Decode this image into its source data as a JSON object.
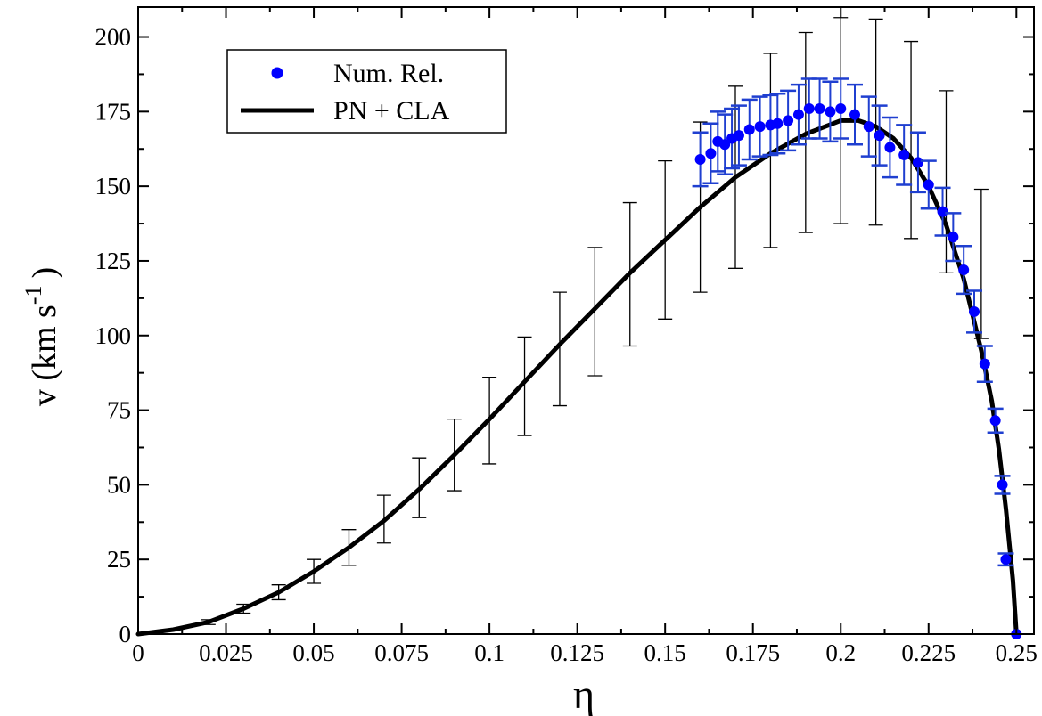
{
  "chart_data": {
    "type": "line",
    "xlabel": "η",
    "ylabel": "v (km s",
    "ylabel_superscript": "-1",
    "ylabel_close": ")",
    "xlim": [
      0,
      0.255
    ],
    "ylim": [
      0,
      210
    ],
    "x_ticks": [
      0,
      0.025,
      0.05,
      0.075,
      0.1,
      0.125,
      0.15,
      0.175,
      0.2,
      0.225,
      0.25
    ],
    "x_tick_labels": [
      "0",
      "0.025",
      "0.05",
      "0.075",
      "0.1",
      "0.125",
      "0.15",
      "0.175",
      "0.2",
      "0.225",
      "0.25"
    ],
    "y_ticks": [
      0,
      25,
      50,
      75,
      100,
      125,
      150,
      175,
      200
    ],
    "y_tick_labels": [
      "0",
      "25",
      "50",
      "75",
      "100",
      "125",
      "150",
      "175",
      "200"
    ],
    "legend": {
      "position": "top-left",
      "entries": [
        {
          "label": "Num. Rel.",
          "marker": "circle",
          "color": "#0000ff"
        },
        {
          "label": "PN + CLA",
          "marker": "line",
          "color": "#000000"
        }
      ]
    },
    "series": [
      {
        "name": "Num. Rel.",
        "kind": "scatter",
        "color": "#0000ff",
        "errorbar_color": "#1f3fd0",
        "points": [
          {
            "x": 0.16,
            "y": 159,
            "err": 9
          },
          {
            "x": 0.163,
            "y": 161,
            "err": 10
          },
          {
            "x": 0.165,
            "y": 165,
            "err": 10
          },
          {
            "x": 0.167,
            "y": 164,
            "err": 10
          },
          {
            "x": 0.169,
            "y": 166,
            "err": 10
          },
          {
            "x": 0.171,
            "y": 167,
            "err": 10
          },
          {
            "x": 0.174,
            "y": 169,
            "err": 10
          },
          {
            "x": 0.177,
            "y": 170,
            "err": 10
          },
          {
            "x": 0.18,
            "y": 170.5,
            "err": 10
          },
          {
            "x": 0.182,
            "y": 171,
            "err": 10
          },
          {
            "x": 0.185,
            "y": 172,
            "err": 10
          },
          {
            "x": 0.188,
            "y": 174,
            "err": 10
          },
          {
            "x": 0.191,
            "y": 176,
            "err": 10
          },
          {
            "x": 0.194,
            "y": 176,
            "err": 10
          },
          {
            "x": 0.197,
            "y": 175,
            "err": 10
          },
          {
            "x": 0.2,
            "y": 176,
            "err": 10
          },
          {
            "x": 0.204,
            "y": 174,
            "err": 10
          },
          {
            "x": 0.208,
            "y": 170,
            "err": 10
          },
          {
            "x": 0.211,
            "y": 167,
            "err": 10
          },
          {
            "x": 0.214,
            "y": 163,
            "err": 10
          },
          {
            "x": 0.218,
            "y": 160.5,
            "err": 10
          },
          {
            "x": 0.222,
            "y": 158,
            "err": 10
          },
          {
            "x": 0.225,
            "y": 150.5,
            "err": 8
          },
          {
            "x": 0.229,
            "y": 141.5,
            "err": 8
          },
          {
            "x": 0.232,
            "y": 133,
            "err": 8
          },
          {
            "x": 0.235,
            "y": 122,
            "err": 8
          },
          {
            "x": 0.238,
            "y": 108,
            "err": 7
          },
          {
            "x": 0.241,
            "y": 90.5,
            "err": 6
          },
          {
            "x": 0.244,
            "y": 71.5,
            "err": 4
          },
          {
            "x": 0.246,
            "y": 50,
            "err": 3
          },
          {
            "x": 0.247,
            "y": 25,
            "err": 2
          },
          {
            "x": 0.25,
            "y": 0,
            "err": 0
          }
        ]
      },
      {
        "name": "PN + CLA",
        "kind": "line",
        "color": "#000000",
        "x": [
          0,
          0.01,
          0.02,
          0.03,
          0.04,
          0.05,
          0.06,
          0.07,
          0.08,
          0.09,
          0.1,
          0.11,
          0.12,
          0.13,
          0.14,
          0.15,
          0.16,
          0.17,
          0.18,
          0.19,
          0.2,
          0.205,
          0.21,
          0.215,
          0.22,
          0.225,
          0.23,
          0.235,
          0.24,
          0.243,
          0.245,
          0.247,
          0.249,
          0.25
        ],
        "y": [
          0,
          1.5,
          4,
          8.5,
          14,
          21,
          29,
          38,
          48.5,
          60,
          72,
          84.5,
          97,
          109,
          121,
          132,
          143,
          153,
          161,
          167.5,
          172,
          172,
          170,
          166,
          159.5,
          150,
          137,
          119,
          95,
          78,
          62,
          42,
          18,
          0
        ]
      },
      {
        "name": "",
        "kind": "errorbars",
        "color": "#000000",
        "points": [
          {
            "x": 0.02,
            "y": 4,
            "err": 0.8
          },
          {
            "x": 0.03,
            "y": 8.5,
            "err": 1.5
          },
          {
            "x": 0.04,
            "y": 14,
            "err": 2.5
          },
          {
            "x": 0.05,
            "y": 21,
            "err": 4
          },
          {
            "x": 0.06,
            "y": 29,
            "err": 6
          },
          {
            "x": 0.07,
            "y": 38.5,
            "err": 8
          },
          {
            "x": 0.08,
            "y": 49,
            "err": 10
          },
          {
            "x": 0.09,
            "y": 60,
            "err": 12
          },
          {
            "x": 0.1,
            "y": 71.5,
            "err": 14.5
          },
          {
            "x": 0.11,
            "y": 83,
            "err": 16.5
          },
          {
            "x": 0.12,
            "y": 95.5,
            "err": 19
          },
          {
            "x": 0.13,
            "y": 108,
            "err": 21.5
          },
          {
            "x": 0.14,
            "y": 120.5,
            "err": 24
          },
          {
            "x": 0.15,
            "y": 132,
            "err": 26.5
          },
          {
            "x": 0.16,
            "y": 143,
            "err": 28.5
          },
          {
            "x": 0.17,
            "y": 153,
            "err": 30.5
          },
          {
            "x": 0.18,
            "y": 162,
            "err": 32.5
          },
          {
            "x": 0.19,
            "y": 168,
            "err": 33.5
          },
          {
            "x": 0.2,
            "y": 172,
            "err": 34.5
          },
          {
            "x": 0.21,
            "y": 171.5,
            "err": 34.5
          },
          {
            "x": 0.22,
            "y": 165.5,
            "err": 33
          },
          {
            "x": 0.23,
            "y": 151.5,
            "err": 30.5
          },
          {
            "x": 0.24,
            "y": 124,
            "err": 25
          }
        ]
      }
    ]
  }
}
